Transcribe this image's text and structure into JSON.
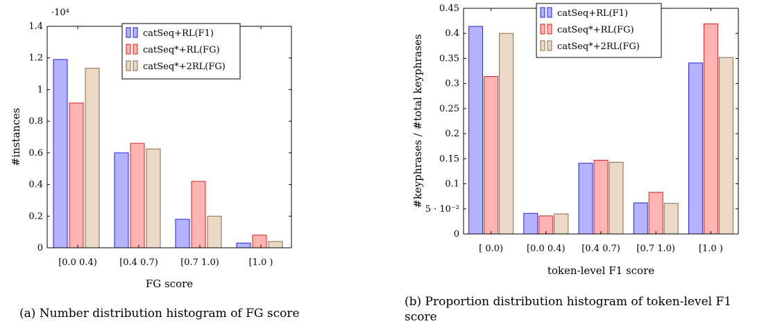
{
  "captions": {
    "a": "(a) Number distribution histogram of FG score",
    "b": "(b) Proportion distribution histogram of token-level F1 score"
  },
  "colors": {
    "blue_fill": "#b3b3ff",
    "blue_stroke": "#2222cc",
    "red_fill": "#ffb3b3",
    "red_stroke": "#cc2222",
    "tan_fill": "#ead9c6",
    "tan_stroke": "#8b6b4a"
  },
  "chart_data": [
    {
      "type": "bar",
      "title": "",
      "xlabel": "FG score",
      "ylabel": "#instances",
      "y_multiplier_label": "·10⁴",
      "categories": [
        "[0.0 0.4)",
        "[0.4 0.7)",
        "[0.7 1.0)",
        "[1.0 )"
      ],
      "ylim": [
        0,
        14000
      ],
      "ytick_values": [
        0,
        2000,
        4000,
        6000,
        8000,
        10000,
        12000,
        14000
      ],
      "ytick_labels": [
        "0",
        "0.2",
        "0.4",
        "0.6",
        "0.8",
        "1",
        "1.2",
        "1.4"
      ],
      "legend_position": "top-right",
      "series": [
        {
          "name": "catSeq+RL(F1)",
          "color": "blue",
          "values": [
            11900,
            6000,
            1800,
            300
          ]
        },
        {
          "name": "catSeq*+RL(FG)",
          "color": "red",
          "values": [
            9150,
            6600,
            4200,
            800
          ]
        },
        {
          "name": "catSeq*+2RL(FG)",
          "color": "tan",
          "values": [
            11350,
            6250,
            2000,
            400
          ]
        }
      ],
      "grid": false
    },
    {
      "type": "bar",
      "title": "",
      "xlabel": "token-level F1 score",
      "ylabel": "#keyphrases / #total keyphrases",
      "categories": [
        "[ 0.0)",
        "[0.0 0.4)",
        "[0.4 0.7)",
        "[0.7 1.0)",
        "[1.0 )"
      ],
      "ylim": [
        0,
        0.45
      ],
      "ytick_values": [
        0,
        0.05,
        0.1,
        0.15,
        0.2,
        0.25,
        0.3,
        0.35,
        0.4,
        0.45
      ],
      "ytick_labels": [
        "0",
        "5 · 10⁻²",
        "0.1",
        "0.15",
        "0.2",
        "0.25",
        "0.3",
        "0.35",
        "0.4",
        "0.45"
      ],
      "legend_position": "top-right",
      "series": [
        {
          "name": "catSeq+RL(F1)",
          "color": "blue",
          "values": [
            0.414,
            0.041,
            0.141,
            0.062,
            0.341
          ]
        },
        {
          "name": "catSeq*+RL(FG)",
          "color": "red",
          "values": [
            0.314,
            0.036,
            0.147,
            0.083,
            0.419
          ]
        },
        {
          "name": "catSeq*+2RL(FG)",
          "color": "tan",
          "values": [
            0.4,
            0.04,
            0.143,
            0.061,
            0.352
          ]
        }
      ],
      "grid": false
    }
  ]
}
